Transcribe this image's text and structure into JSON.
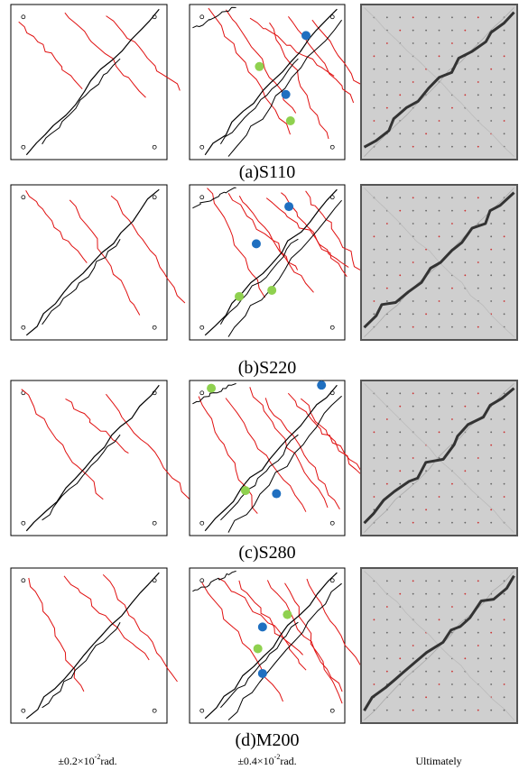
{
  "rows": [
    {
      "caption": "(a)S110"
    },
    {
      "caption": "(b)S220"
    },
    {
      "caption": "(c)S280"
    },
    {
      "caption": "(d)M200"
    }
  ],
  "columns": [
    {
      "prefix": "±0.2×10",
      "sup": "-2",
      "suffix": "rad."
    },
    {
      "prefix": "±0.4×10",
      "sup": "-2",
      "suffix": "rad."
    },
    {
      "label": "Ultimately"
    }
  ]
}
